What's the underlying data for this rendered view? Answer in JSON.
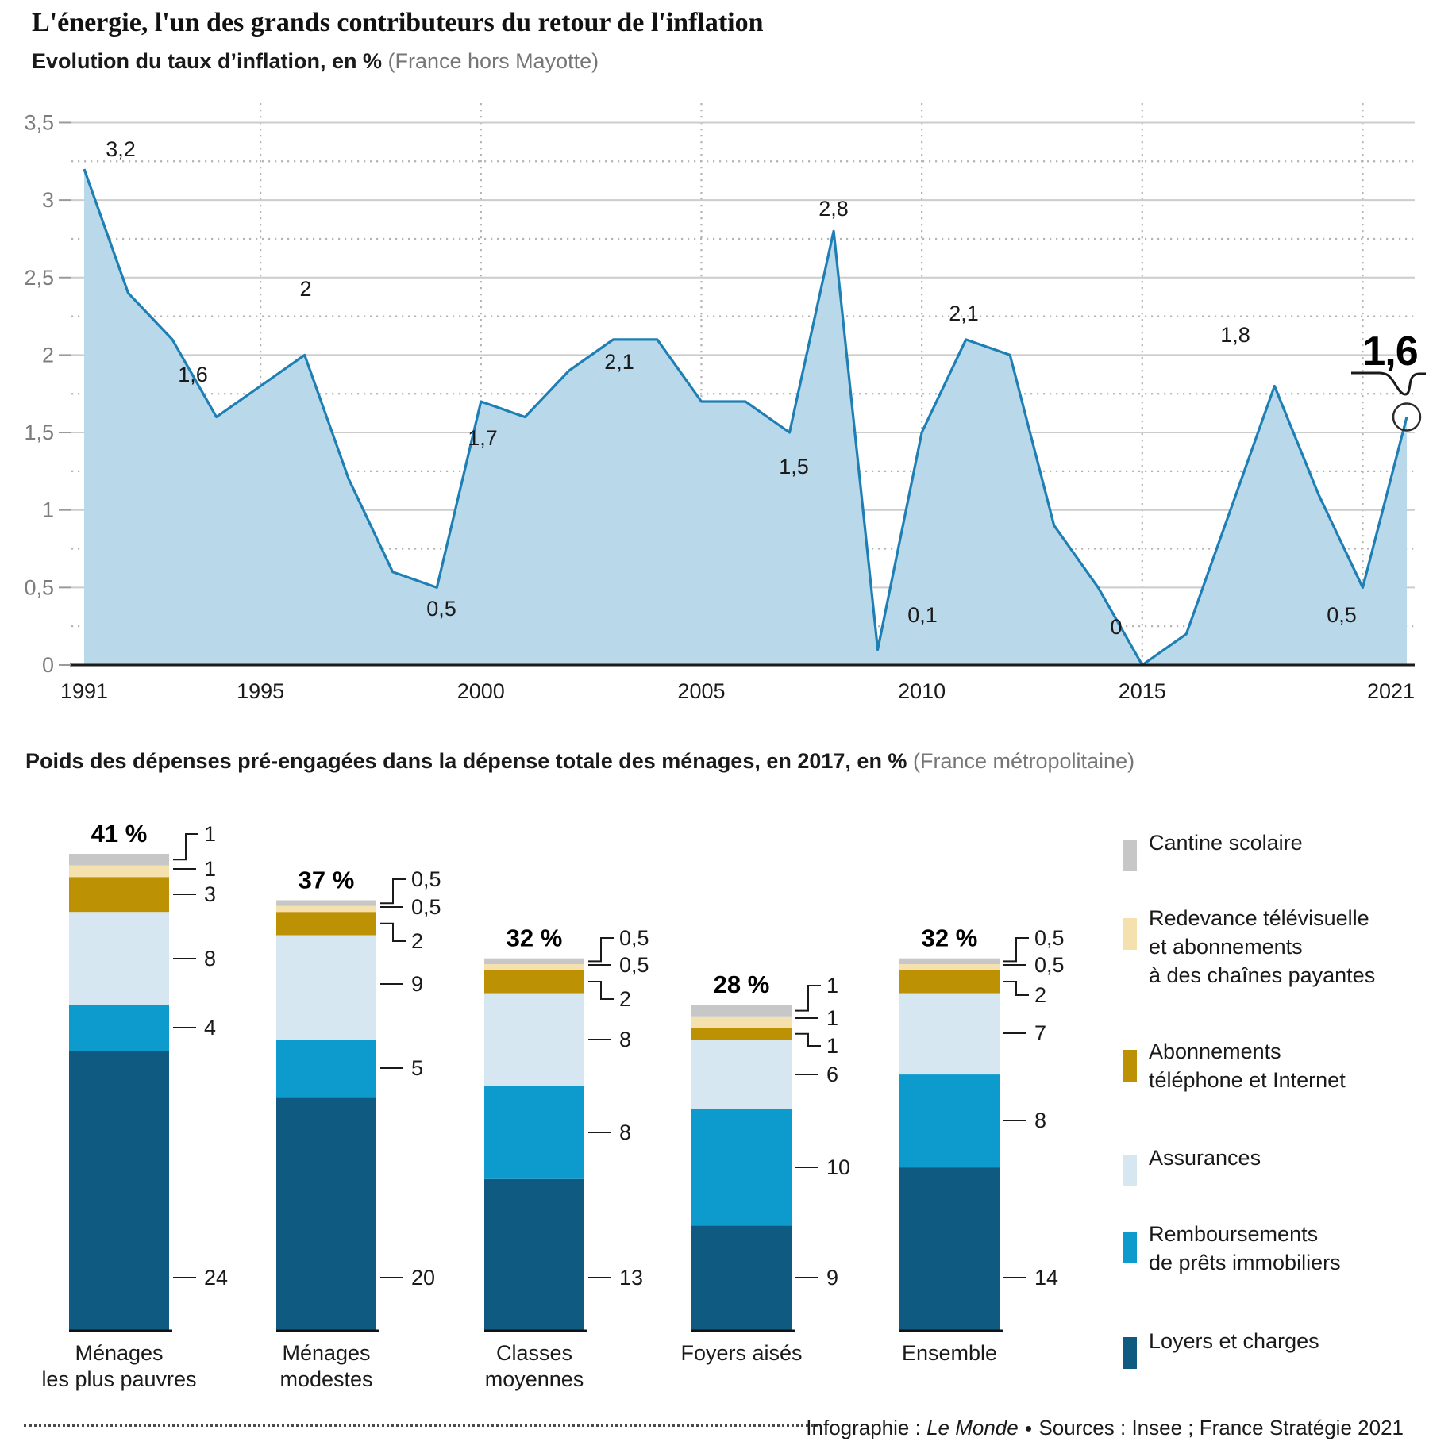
{
  "header": {
    "title": "L'énergie, l'un des grands contributeurs du retour de l'inflation",
    "subtitle_bold": "Evolution du taux d’inflation, en %",
    "subtitle_note": "(France hors Mayotte)"
  },
  "chart_data": [
    {
      "type": "area",
      "title": "Evolution du taux d'inflation, en %",
      "region_note": "France hors Mayotte",
      "x": [
        1991,
        1992,
        1993,
        1994,
        1995,
        1996,
        1997,
        1998,
        1999,
        2000,
        2001,
        2002,
        2003,
        2004,
        2005,
        2006,
        2007,
        2008,
        2009,
        2010,
        2011,
        2012,
        2013,
        2014,
        2015,
        2016,
        2017,
        2018,
        2019,
        2020,
        2021
      ],
      "values": [
        3.2,
        2.4,
        2.1,
        1.6,
        1.8,
        2.0,
        1.2,
        0.6,
        0.5,
        1.7,
        1.6,
        1.9,
        2.1,
        2.1,
        1.7,
        1.7,
        1.5,
        2.8,
        0.1,
        1.5,
        2.1,
        2.0,
        0.9,
        0.5,
        0.0,
        0.2,
        1.0,
        1.8,
        1.1,
        0.5,
        1.6
      ],
      "ylim": [
        0,
        3.5
      ],
      "y_ticks": [
        {
          "v": 3.5,
          "t": "3,5"
        },
        {
          "v": 3,
          "t": "3"
        },
        {
          "v": 2.5,
          "t": "2,5"
        },
        {
          "v": 2,
          "t": "2"
        },
        {
          "v": 1.5,
          "t": "1,5"
        },
        {
          "v": 1,
          "t": "1"
        },
        {
          "v": 0.5,
          "t": "0,5"
        },
        {
          "v": 0,
          "t": "0"
        }
      ],
      "x_ticks": [
        "1991",
        "1995",
        "2000",
        "2005",
        "2010",
        "2015",
        "2021"
      ],
      "grid_dotted_years": [
        1995,
        2000,
        2005,
        2010,
        2015,
        2020
      ],
      "labeled_points": [
        {
          "year": 1991,
          "text": "3,2"
        },
        {
          "year": 1994,
          "text": "1,6"
        },
        {
          "year": 1996,
          "text": "2"
        },
        {
          "year": 1999,
          "text": "0,5"
        },
        {
          "year": 2000,
          "text": "1,7"
        },
        {
          "year": 2003,
          "text": "2,1"
        },
        {
          "year": 2007,
          "text": "1,5"
        },
        {
          "year": 2008,
          "text": "2,8"
        },
        {
          "year": 2009,
          "text": "0,1"
        },
        {
          "year": 2011,
          "text": "2,1"
        },
        {
          "year": 2015,
          "text": "0"
        },
        {
          "year": 2018,
          "text": "1,8"
        },
        {
          "year": 2020,
          "text": "0,5"
        }
      ],
      "highlight": {
        "year": 2021,
        "value": 1.6,
        "text": "1,6"
      },
      "colors": {
        "area": "#b9d8ea",
        "line": "#1e7fb4",
        "grid": "#cccccc",
        "grid_dot": "#b3b3b3",
        "axis": "#1a1a1a"
      }
    },
    {
      "type": "bar",
      "stacked": true,
      "title": "Poids des dépenses pré-engagées dans la dépense totale des ménages, en 2017, en %",
      "region_note": "(France métropolitaine)",
      "categories": [
        [
          "Ménages",
          "les plus pauvres"
        ],
        [
          "Ménages",
          "modestes"
        ],
        [
          "Classes",
          "moyennes"
        ],
        [
          "Foyers aisés"
        ],
        [
          "Ensemble"
        ]
      ],
      "totals": [
        "41 %",
        "37 %",
        "32 %",
        "28 %",
        "32 %"
      ],
      "series": [
        {
          "name": "Loyers et charges",
          "color": "#0e5a80",
          "values": [
            24,
            20,
            13,
            9,
            14
          ],
          "labels": [
            "24",
            "20",
            "13",
            "9",
            "14"
          ]
        },
        {
          "name": "Remboursements de prêts immobiliers",
          "color": "#0d9bce",
          "values": [
            4,
            5,
            8,
            10,
            8
          ],
          "labels": [
            "4",
            "5",
            "8",
            "10",
            "8"
          ]
        },
        {
          "name": "Assurances",
          "color": "#d7e7f2",
          "values": [
            8,
            9,
            8,
            6,
            7
          ],
          "labels": [
            "8",
            "9",
            "8",
            "6",
            "7"
          ]
        },
        {
          "name": "Abonnements téléphone et Internet",
          "color": "#bd9104",
          "values": [
            3,
            2,
            2,
            1,
            2
          ],
          "labels": [
            "3",
            "2",
            "2",
            "1",
            "2"
          ]
        },
        {
          "name": "Redevance télévisuelle et abonnements à des chaînes payantes",
          "color": "#f5e1ad",
          "values": [
            1,
            0.5,
            0.5,
            1,
            0.5
          ],
          "labels": [
            "1",
            "0,5",
            "0,5",
            "1",
            "0,5"
          ]
        },
        {
          "name": "Cantine scolaire",
          "color": "#c7c7c7",
          "values": [
            1,
            0.5,
            0.5,
            1,
            0.5
          ],
          "labels": [
            "1",
            "0,5",
            "0,5",
            "1",
            "0,5"
          ]
        }
      ]
    }
  ],
  "legend": {
    "items": [
      {
        "color": "#c7c7c7",
        "lines": [
          "Cantine scolaire"
        ]
      },
      {
        "color": "#f5e1ad",
        "lines": [
          "Redevance télévisuelle",
          "et abonnements",
          "à des chaînes payantes"
        ]
      },
      {
        "color": "#bd9104",
        "lines": [
          "Abonnements",
          "téléphone et Internet"
        ]
      },
      {
        "color": "#d7e7f2",
        "lines": [
          "Assurances"
        ]
      },
      {
        "color": "#0d9bce",
        "lines": [
          "Remboursements",
          "de prêts immobiliers"
        ]
      },
      {
        "color": "#0e5a80",
        "lines": [
          "Loyers et charges"
        ]
      }
    ]
  },
  "footer": {
    "prefix": "Infographie : ",
    "brand": "Le Monde",
    "bullet": "●",
    "sources": "Sources : Insee ; France Stratégie 2021"
  }
}
